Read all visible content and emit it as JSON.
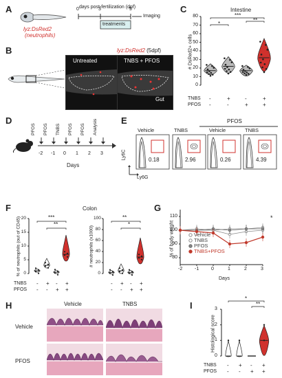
{
  "panels": [
    "A",
    "B",
    "C",
    "D",
    "E",
    "F",
    "G",
    "H",
    "I"
  ],
  "A": {
    "axis_title": "days post-fertilization (dpf)",
    "ticks": [
      "0",
      "3",
      "5"
    ],
    "treatments": "treatments",
    "imaging": "Imaging",
    "fish_label": "lyz:DsRed2",
    "fish_sub": "(neutrophils)"
  },
  "B": {
    "title": "lyz:DsRed2",
    "title_suffix": " (5dpf)",
    "untreated": "Untreated",
    "treated": "TNBS + PFOS",
    "gut": "Gut"
  },
  "C": {
    "title": "Intestine",
    "ylabel": "# DsRed2+ cells",
    "yticks": [
      "0",
      "10",
      "20",
      "30",
      "40",
      "50",
      "60",
      "70",
      "80"
    ],
    "row1_label": "TNBS",
    "row2_label": "PFOS",
    "row1": [
      "-",
      "+",
      "-",
      "+"
    ],
    "row2": [
      "-",
      "-",
      "+",
      "+"
    ],
    "sig": [
      "*",
      "***",
      "**"
    ]
  },
  "D": {
    "treatments": [
      "PFOS",
      "PFOS",
      "TNBS",
      "PFOS",
      "PFOS",
      "Analysis"
    ],
    "days": [
      "-2",
      "-1",
      "0",
      "1",
      "2",
      "3"
    ],
    "xlabel": "Days"
  },
  "E": {
    "group_header": "PFOS",
    "conditions": [
      "Vehicle",
      "TNBS",
      "Vehicle",
      "TNBS"
    ],
    "values": [
      "0.18",
      "2.96",
      "0.26",
      "4.39"
    ],
    "y_axis": "Ly6C",
    "x_axis": "Ly6G"
  },
  "F": {
    "title": "Colon",
    "left_ylabel": "% of neutrophils (out of CD45)",
    "left_yticks": [
      "0",
      "5",
      "10",
      "15",
      "20"
    ],
    "right_ylabel": "# neutrophils (x1000)",
    "right_yticks": [
      "0",
      "20",
      "40",
      "60",
      "80",
      "100"
    ],
    "row1_label": "TNBS",
    "row2_label": "PFOS",
    "row1": [
      "-",
      "+",
      "-",
      "+"
    ],
    "row2": [
      "-",
      "-",
      "+",
      "+"
    ],
    "left_sig": [
      "***",
      "**"
    ],
    "right_sig": [
      "**",
      "*"
    ]
  },
  "G": {
    "ylabel": "% of body weight",
    "xlabel": "Days",
    "yticks": [
      "80",
      "90",
      "100",
      "110"
    ],
    "xticks": [
      "-2",
      "-1",
      "0",
      "1",
      "2",
      "3"
    ],
    "legend": [
      "Vehicle",
      "TNBS",
      "PFOS",
      "TNBS+PFOS"
    ],
    "sig": "*",
    "colors": [
      "#888888",
      "#888888",
      "#666666",
      "#c0392b"
    ]
  },
  "H": {
    "col_labels": [
      "Vehicle",
      "TNBS"
    ],
    "row_labels": [
      "Vehicle",
      "PFOS"
    ]
  },
  "I": {
    "ylabel": "Histological score",
    "yticks": [
      "0",
      "1",
      "2",
      "3"
    ],
    "row1_label": "TNBS",
    "row2_label": "PFOS",
    "row1": [
      "-",
      "+",
      "-",
      "+"
    ],
    "row2": [
      "-",
      "-",
      "+",
      "+"
    ],
    "sig": [
      "*",
      "**"
    ]
  },
  "chart_data": [
    {
      "type": "violin",
      "panel": "C",
      "title": "Intestine",
      "ylabel": "# DsRed2+ cells",
      "ylim": [
        0,
        80
      ],
      "categories": [
        "TNBS- PFOS-",
        "TNBS+ PFOS-",
        "TNBS- PFOS+",
        "TNBS+ PFOS+"
      ],
      "medians": [
        17,
        22,
        17,
        32
      ]
    },
    {
      "type": "violin",
      "panel": "F-left",
      "ylabel": "% of neutrophils (out of CD45)",
      "ylim": [
        0,
        20
      ],
      "categories": [
        "TNBS- PFOS-",
        "TNBS+ PFOS-",
        "TNBS- PFOS+",
        "TNBS+ PFOS+"
      ],
      "medians": [
        1,
        3,
        0.5,
        7
      ]
    },
    {
      "type": "violin",
      "panel": "F-right",
      "ylabel": "# neutrophils (x1000)",
      "ylim": [
        0,
        100
      ],
      "categories": [
        "TNBS- PFOS-",
        "TNBS+ PFOS-",
        "TNBS- PFOS+",
        "TNBS+ PFOS+"
      ],
      "medians": [
        2,
        5,
        2,
        30
      ]
    },
    {
      "type": "line",
      "panel": "G",
      "ylabel": "% of body weight",
      "xlabel": "Days",
      "ylim": [
        75,
        115
      ],
      "x": [
        -2,
        -1,
        0,
        1,
        2,
        3
      ],
      "series": [
        {
          "name": "Vehicle",
          "values": [
            100,
            101,
            100,
            101,
            101,
            102
          ]
        },
        {
          "name": "TNBS",
          "values": [
            100,
            100,
            100,
            97,
            99,
            100
          ]
        },
        {
          "name": "PFOS",
          "values": [
            100,
            100,
            101,
            100,
            101,
            101
          ]
        },
        {
          "name": "TNBS+PFOS",
          "values": [
            100,
            99,
            98,
            90,
            91,
            95
          ]
        }
      ]
    },
    {
      "type": "violin",
      "panel": "I",
      "ylabel": "Histological score",
      "ylim": [
        0,
        3
      ],
      "categories": [
        "TNBS- PFOS-",
        "TNBS+ PFOS-",
        "TNBS- PFOS+",
        "TNBS+ PFOS+"
      ],
      "medians": [
        0,
        0,
        0,
        1
      ]
    }
  ]
}
